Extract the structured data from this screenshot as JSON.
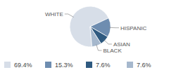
{
  "chart_data": {
    "type": "pie",
    "categories": [
      "WHITE",
      "HISPANIC",
      "ASIAN",
      "BLACK"
    ],
    "values": [
      69.4,
      15.3,
      7.6,
      7.6
    ],
    "value_labels": [
      "69.4%",
      "15.3%",
      "7.6%",
      "7.6%"
    ],
    "colors": [
      "#d7dee8",
      "#6e8db0",
      "#2f5a80",
      "#a6b8cd"
    ],
    "legend": "bottom"
  }
}
